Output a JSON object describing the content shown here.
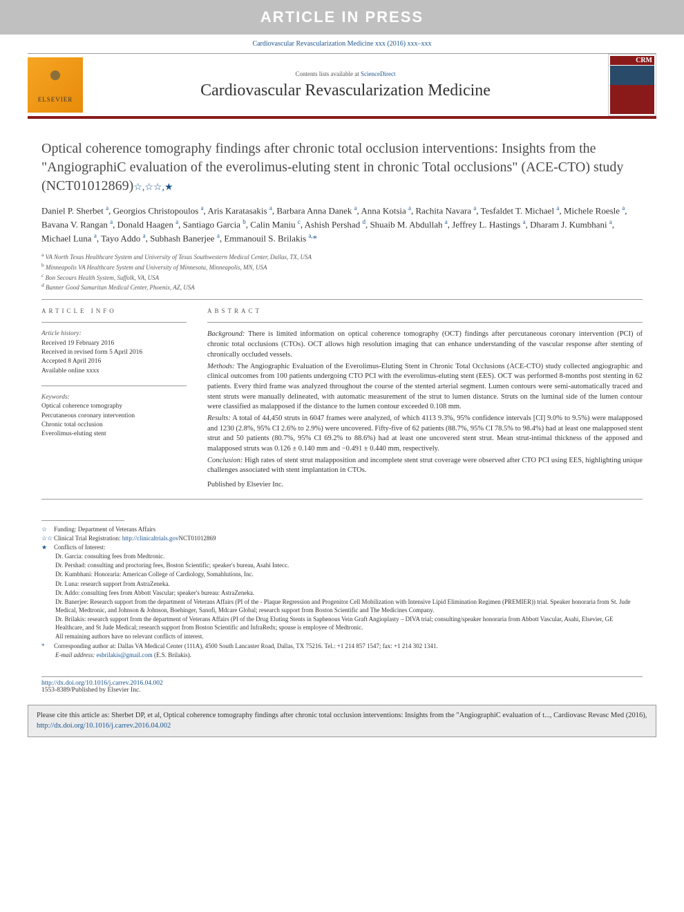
{
  "banner": "ARTICLE IN PRESS",
  "journal_ref": {
    "text": "Cardiovascular Revascularization Medicine xxx (2016) xxx–xxx",
    "link_text": "Cardiovascular Revascularization Medicine"
  },
  "header": {
    "elsevier_label": "ELSEVIER",
    "contents_prefix": "Contents lists available at ",
    "contents_link": "ScienceDirect",
    "journal_title": "Cardiovascular Revascularization Medicine",
    "cover_label": "CRM"
  },
  "title": {
    "main": "Optical coherence tomography findings after chronic total occlusion interventions: Insights from the \"AngiographiC evaluation of the everolimus-eluting stent in chronic Total occlusions\" (ACE-CTO) study (NCT01012869)",
    "marks": "☆,☆☆,★"
  },
  "authors_html": "Daniel P. Sherbet <sup>a</sup>, Georgios Christopoulos <sup>a</sup>, Aris Karatasakis <sup>a</sup>, Barbara Anna Danek <sup>a</sup>, Anna Kotsia <sup>a</sup>, Rachita Navara <sup>a</sup>, Tesfaldet T. Michael <sup>a</sup>, Michele Roesle <sup>a</sup>, Bavana V. Rangan <sup>a</sup>, Donald Haagen <sup>a</sup>, Santiago Garcia <sup>b</sup>, Calin Maniu <sup>c</sup>, Ashish Pershad <sup>d</sup>, Shuaib M. Abdullah <sup>a</sup>, Jeffrey L. Hastings <sup>a</sup>, Dharam J. Kumbhani <sup>a</sup>, Michael Luna <sup>a</sup>, Tayo Addo <sup>a</sup>, Subhash Banerjee <sup>a</sup>, Emmanouil S. Brilakis <sup>a,</sup><span class='corr'>*</span>",
  "affiliations": [
    {
      "mark": "a",
      "text": "VA North Texas Healthcare System and University of Texas Southwestern Medical Center, Dallas, TX, USA"
    },
    {
      "mark": "b",
      "text": "Minneapolis VA Healthcare System and University of Minnesota, Minneapolis, MN, USA"
    },
    {
      "mark": "c",
      "text": "Bon Secours Health System, Suffolk, VA, USA"
    },
    {
      "mark": "d",
      "text": "Banner Good Samaritan Medical Center, Phoenix, AZ, USA"
    }
  ],
  "article_info": {
    "label": "ARTICLE INFO",
    "history_label": "Article history:",
    "history": [
      "Received 19 February 2016",
      "Received in revised form 5 April 2016",
      "Accepted 8 April 2016",
      "Available online xxxx"
    ],
    "keywords_label": "Keywords:",
    "keywords": [
      "Optical coherence tomography",
      "Percutaneous coronary intervention",
      "Chronic total occlusion",
      "Everolimus-eluting stent"
    ]
  },
  "abstract": {
    "label": "ABSTRACT",
    "background_label": "Background:",
    "background": "There is limited information on optical coherence tomography (OCT) findings after percutaneous coronary intervention (PCI) of chronic total occlusions (CTOs). OCT allows high resolution imaging that can enhance understanding of the vascular response after stenting of chronically occluded vessels.",
    "methods_label": "Methods:",
    "methods": "The Angiographic Evaluation of the Everolimus-Eluting Stent in Chronic Total Occlusions (ACE-CTO) study collected angiographic and clinical outcomes from 100 patients undergoing CTO PCI with the everolimus-eluting stent (EES). OCT was performed 8-months post stenting in 62 patients. Every third frame was analyzed throughout the course of the stented arterial segment. Lumen contours were semi-automatically traced and stent struts were manually delineated, with automatic measurement of the strut to lumen distance. Struts on the luminal side of the lumen contour were classified as malapposed if the distance to the lumen contour exceeded 0.108 mm.",
    "results_label": "Results:",
    "results": "A total of 44,450 struts in 6047 frames were analyzed, of which 4113 9.3%, 95% confidence intervals [CI] 9.0% to 9.5%) were malapposed and 1230 (2.8%, 95% CI 2.6% to 2.9%) were uncovered. Fifty-five of 62 patients (88.7%, 95% CI 78.5% to 98.4%) had at least one malapposed stent strut and 50 patients (80.7%, 95% CI 69.2% to 88.6%) had at least one uncovered stent strut. Mean strut-intimal thickness of the apposed and malapposed struts was 0.126 ± 0.140 mm and −0.491 ± 0.440 mm, respectively.",
    "conclusion_label": "Conclusion:",
    "conclusion": "High rates of stent strut malapposition and incomplete stent strut coverage were observed after CTO PCI using EES, highlighting unique challenges associated with stent implantation in CTOs.",
    "published_by": "Published by Elsevier Inc."
  },
  "footnotes": {
    "funding_mark": "☆",
    "funding": "Funding: Department of Veterans Affairs",
    "trial_mark": "☆☆",
    "trial_prefix": "Clinical Trial Registration: ",
    "trial_link": "http://clinicaltrials.gov",
    "trial_suffix": "NCT01012869",
    "coi_mark": "★",
    "coi_label": "Conflicts of Interest:",
    "coi": [
      "Dr. Garcia: consulting fees from Medtronic.",
      "Dr. Pershad: consulting and proctoring fees, Boston Scientific; speaker's bureau, Asahi Intecc.",
      "Dr. Kumbhani: Honoraria: American College of Cardiology, Somahlutions, Inc.",
      "Dr. Luna: research support from AstraZeneka.",
      "Dr. Addo: consulting fees from Abbott Vascular; speaker's bureau: AstraZeneka.",
      "Dr. Banerjee: Research support from the department of Veterans Affairs (PI of the - Plaque Regression and Progenitor Cell Mobilization with Intensive Lipid Elimination Regimen (PREMIER)) trial. Speaker honoraria from St. Jude Medical, Medtronic, and Johnson & Johnson, Boehinger, Sanofi, Mdcare Global; research support from Boston Scientific and The Medicines Company.",
      "Dr. Brilakis: research support from the department of Veterans Affairs (PI of the Drug Eluting Stents in Saphenous Vein Graft Angioplasty – DIVA trial; consulting/speaker honoraria from Abbott Vascular, Asahi, Elsevier, GE Healthcare, and St Jude Medical; research support from Boston Scientific and InfraRedx; spouse is employee of Medtronic.",
      "All remaining authors have no relevant conflicts of interest."
    ],
    "corr_mark": "*",
    "corr": "Corresponding author at: Dallas VA Medical Center (111A), 4500 South Lancaster Road, Dallas, TX 75216. Tel.: +1 214 857 1547; fax: +1 214 302 1341.",
    "email_label": "E-mail address:",
    "email": "esbrilakis@gmail.com",
    "email_suffix": "(E.S. Brilakis)."
  },
  "doi": {
    "link": "http://dx.doi.org/10.1016/j.carrev.2016.04.002",
    "issn": "1553-8389/Published by Elsevier Inc."
  },
  "cite_box": {
    "prefix": "Please cite this article as: Sherbet DP, et al, Optical coherence tomography findings after chronic total occlusion interventions: Insights from the \"AngiographiC evaluation of t..., Cardiovasc Revasc Med (2016), ",
    "link": "http://dx.doi.org/10.1016/j.carrev.2016.04.002"
  },
  "colors": {
    "banner_bg": "#c0c0c0",
    "accent_red": "#8a1a1a",
    "link_blue": "#1a5490",
    "elsevier_orange": "#f5a623",
    "cite_bg": "#ececec"
  }
}
